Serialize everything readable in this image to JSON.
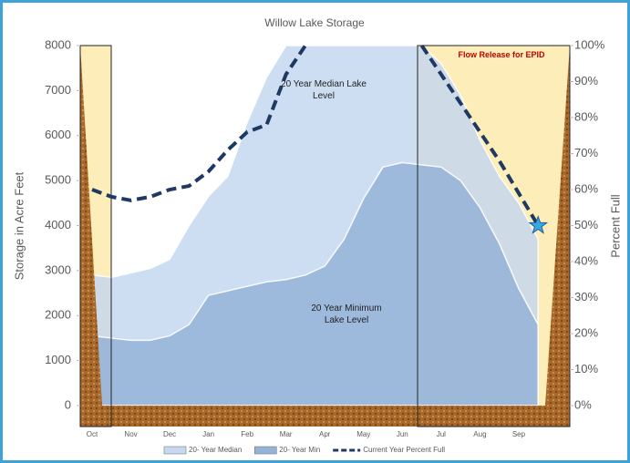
{
  "chart_data": {
    "type": "area",
    "title": "Willow Lake Storage",
    "y_label": "Storage in Acre Feet",
    "y2_label": "Percent Full",
    "categories": [
      "Oct",
      null,
      "Nov",
      null,
      "Dec",
      null,
      "Jan",
      null,
      "Feb",
      null,
      "Mar",
      null,
      "Apr",
      null,
      "May",
      null,
      "Jun",
      null,
      "Jul",
      null,
      "Aug",
      null,
      "Sep",
      null
    ],
    "series": [
      {
        "name": "20- Year Median",
        "color": "#c6d9f0",
        "values": [
          2900,
          2850,
          2950,
          3050,
          3250,
          4000,
          4650,
          5100,
          6300,
          7300,
          8000,
          8000,
          8000,
          8000,
          8000,
          8000,
          8000,
          8000,
          7600,
          6900,
          5900,
          5100,
          4500,
          3700
        ]
      },
      {
        "name": "20- Year Min",
        "color": "#95b3d7",
        "values": [
          1550,
          1500,
          1450,
          1450,
          1550,
          1800,
          2450,
          2550,
          2650,
          2750,
          2800,
          2900,
          3100,
          3700,
          4600,
          5300,
          5400,
          5350,
          5300,
          5000,
          4400,
          3600,
          2600,
          1800
        ]
      },
      {
        "name": "Current Year Percent Full",
        "color": "#1f3864",
        "axis": "y2",
        "values": [
          60,
          58,
          57,
          58,
          60,
          61,
          65,
          71,
          76,
          78,
          92,
          100,
          null,
          null,
          null,
          null,
          null,
          100,
          92,
          84,
          76,
          68,
          59,
          50
        ]
      }
    ],
    "ylim": [
      0,
      8000
    ],
    "yticks": [
      0,
      1000,
      2000,
      3000,
      4000,
      5000,
      6000,
      7000,
      8000
    ],
    "y2lim": [
      0,
      100
    ],
    "y2ticks": [
      {
        "value": 0,
        "label": "0%"
      },
      {
        "value": 10,
        "label": "10%"
      },
      {
        "value": 20,
        "label": "20%"
      },
      {
        "value": 30,
        "label": "30%"
      },
      {
        "value": 40,
        "label": "40%"
      },
      {
        "value": 50,
        "label": "50%"
      },
      {
        "value": 60,
        "label": "60%"
      },
      {
        "value": 70,
        "label": "70%"
      },
      {
        "value": 80,
        "label": "80%"
      },
      {
        "value": 90,
        "label": "90%"
      },
      {
        "value": 100,
        "label": "100%"
      }
    ],
    "annotations": [
      "20 Year Median Lake Level",
      "20 Year Minimum Lake Level",
      "Flow Release for EPID"
    ],
    "legend": "bottom"
  }
}
